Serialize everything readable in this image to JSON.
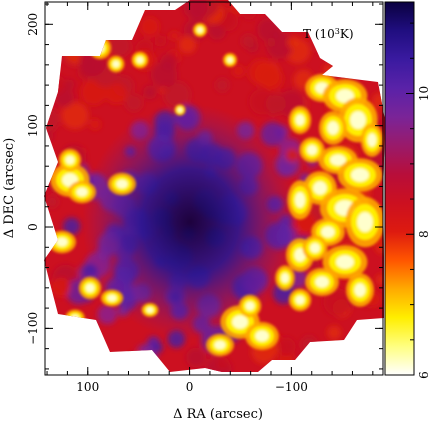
{
  "chart_data": {
    "type": "heatmap",
    "title": "",
    "annotation": "T (10<tspan baseline-shift='super' font-size='8'>3</tspan>K)",
    "annotation_text": "T (10^3K)",
    "xlabel": "Δ RA (arcsec)",
    "ylabel": "Δ DEC (arcsec)",
    "xlim": [
      142,
      -190
    ],
    "ylim": [
      -146,
      222
    ],
    "x_ticks": [
      100,
      0,
      -100
    ],
    "x_tick_labels": [
      "100",
      "0",
      "−100"
    ],
    "y_ticks": [
      -100,
      0,
      100,
      200
    ],
    "y_tick_labels": [
      "−100",
      "0",
      "100",
      "200"
    ],
    "colorbar": {
      "label": "",
      "range": [
        6,
        11.3
      ],
      "ticks": [
        6,
        8,
        10
      ],
      "tick_labels": [
        "6",
        "8",
        "10"
      ],
      "colors": [
        "#ffffff",
        "#ffff80",
        "#ffee00",
        "#ffaa00",
        "#ff5500",
        "#dd1a10",
        "#cc1020",
        "#b80e3a",
        "#9a1a6a",
        "#7a2498",
        "#5a22a8",
        "#3a1aa0",
        "#200e80",
        "#0a0040"
      ]
    },
    "map_description": {
      "outline": "snowflake mosaic of hexagonal tiles",
      "hot_regions": [
        "west (negative RA) edge",
        "south-west edge",
        "east edges"
      ],
      "cool_core": {
        "ra": 0,
        "dec": 0,
        "T_min": 11.3
      }
    }
  }
}
